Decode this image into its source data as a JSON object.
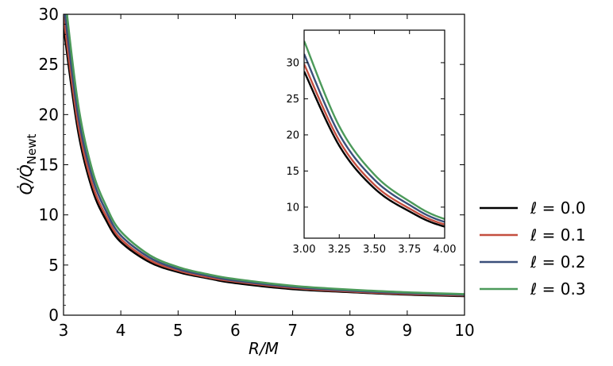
{
  "chart_data": [
    {
      "type": "line",
      "role": "main",
      "xlabel": "R/M",
      "ylabel": "Q̇/Q̇",
      "ylabel_sub": "Newt",
      "xlim": [
        3,
        10
      ],
      "ylim": [
        0,
        30
      ],
      "xticks": [
        3,
        4,
        5,
        6,
        7,
        8,
        9,
        10
      ],
      "yticks": [
        0,
        5,
        10,
        15,
        20,
        25,
        30
      ],
      "grid": false,
      "legend_position": "outside-right",
      "x": [
        3.0,
        3.25,
        3.5,
        3.75,
        4.0,
        4.5,
        5.0,
        5.5,
        6.0,
        7.0,
        8.0,
        9.0,
        10.0
      ],
      "series": [
        {
          "name": "ℓ = 0.0",
          "color": "#000000",
          "values": [
            28.8,
            18.5,
            12.6,
            9.4,
            7.3,
            5.3,
            4.3,
            3.7,
            3.2,
            2.6,
            2.3,
            2.05,
            1.9
          ]
        },
        {
          "name": "ℓ = 0.1",
          "color": "#c44e3f",
          "values": [
            29.8,
            19.2,
            13.1,
            9.8,
            7.6,
            5.5,
            4.45,
            3.8,
            3.35,
            2.72,
            2.37,
            2.12,
            1.97
          ]
        },
        {
          "name": "ℓ = 0.2",
          "color": "#3a4f7a",
          "values": [
            31.2,
            20.1,
            13.8,
            10.3,
            7.95,
            5.75,
            4.6,
            3.95,
            3.45,
            2.82,
            2.45,
            2.2,
            2.03
          ]
        },
        {
          "name": "ℓ = 0.3",
          "color": "#4c9a5a",
          "values": [
            33.0,
            21.2,
            14.5,
            10.8,
            8.35,
            6.0,
            4.8,
            4.1,
            3.6,
            2.93,
            2.55,
            2.28,
            2.1
          ]
        }
      ]
    },
    {
      "type": "line",
      "role": "inset",
      "xlim": [
        3.0,
        4.0
      ],
      "ylim": [
        5.7,
        34.5
      ],
      "xticks": [
        "3.00",
        "3.25",
        "3.50",
        "3.75",
        "4.00"
      ],
      "yticks": [
        10,
        15,
        20,
        25,
        30
      ],
      "grid": false
    }
  ],
  "legend": {
    "items": [
      {
        "label": "ℓ = 0.0",
        "color": "#000000"
      },
      {
        "label": "ℓ = 0.1",
        "color": "#c44e3f"
      },
      {
        "label": "ℓ = 0.2",
        "color": "#3a4f7a"
      },
      {
        "label": "ℓ = 0.3",
        "color": "#4c9a5a"
      }
    ]
  }
}
